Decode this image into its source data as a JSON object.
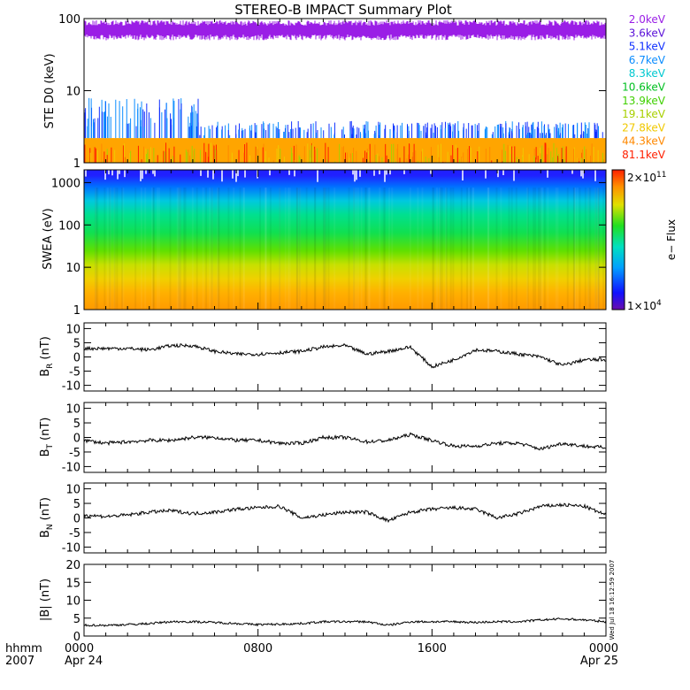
{
  "title": "STEREO-B IMPACT Summary Plot",
  "colors": {
    "ste_background": "#ffa500",
    "flux_low": "#6a0dad",
    "flux_high": "#ff2000"
  },
  "chart_data": [
    {
      "type": "line",
      "id": "ste",
      "ylabel": "STE D0 (keV)",
      "yscale": "log",
      "ylim": [
        1,
        100
      ],
      "yticks": [
        "1",
        "10",
        "100"
      ],
      "legend_placement": "right",
      "series": [
        {
          "name": "2.0keV",
          "color": "#9a1ee6",
          "level_low": 50,
          "level_high": 95
        },
        {
          "name": "3.6keV",
          "color": "#5a10d8"
        },
        {
          "name": "5.1keV",
          "color": "#1030ff"
        },
        {
          "name": "6.7keV",
          "color": "#0a8cff"
        },
        {
          "name": "8.3keV",
          "color": "#00c8d0"
        },
        {
          "name": "10.6keV",
          "color": "#00c020"
        },
        {
          "name": "13.9keV",
          "color": "#40d000"
        },
        {
          "name": "19.1keV",
          "color": "#a8d000"
        },
        {
          "name": "27.8keV",
          "color": "#f0c800"
        },
        {
          "name": "44.3keV",
          "color": "#ff8800"
        },
        {
          "name": "81.1keV",
          "color": "#ff2000"
        }
      ]
    },
    {
      "type": "heatmap",
      "id": "swea",
      "ylabel": "SWEA (eV)",
      "yscale": "log",
      "ylim": [
        1,
        2000
      ],
      "yticks": [
        "1",
        "10",
        "100",
        "1000"
      ],
      "colorbar": {
        "label": "e− Flux",
        "max_label": "2×10",
        "max_exp": "11",
        "min_label": "1×10",
        "min_exp": "4",
        "range": [
          10000,
          200000000000
        ]
      }
    },
    {
      "type": "line",
      "id": "br",
      "ylabel_main": "B",
      "ylabel_sub": "R",
      "ylabel_unit": "(nT)",
      "ylim": [
        -12,
        12
      ],
      "yticks": [
        "10",
        "5",
        "0",
        "-5",
        "-10"
      ],
      "x": [
        0,
        1,
        2,
        3,
        4,
        5,
        6,
        7,
        8,
        9,
        10,
        11,
        12,
        13,
        14,
        15,
        16,
        17,
        18,
        19,
        20,
        21,
        22,
        23,
        24
      ],
      "values": [
        3,
        3,
        3,
        2.5,
        4,
        4,
        2,
        1,
        1,
        1.5,
        2,
        3.5,
        4,
        1,
        2,
        3.5,
        -3.5,
        -1,
        2.5,
        2,
        1,
        0,
        -3,
        -1,
        -1
      ]
    },
    {
      "type": "line",
      "id": "bt",
      "ylabel_main": "B",
      "ylabel_sub": "T",
      "ylabel_unit": "(nT)",
      "ylim": [
        -12,
        12
      ],
      "yticks": [
        "10",
        "5",
        "0",
        "-5",
        "-10"
      ],
      "x": [
        0,
        1,
        2,
        3,
        4,
        5,
        6,
        7,
        8,
        9,
        10,
        11,
        12,
        13,
        14,
        15,
        16,
        17,
        18,
        19,
        20,
        21,
        22,
        23,
        24
      ],
      "values": [
        -1,
        -2,
        -1.5,
        -1,
        -1,
        0,
        0,
        -1,
        -1,
        -2,
        -2,
        0,
        0,
        -1.5,
        -1,
        1,
        -1,
        -3,
        -3,
        -2,
        -2,
        -4,
        -2,
        -3,
        -3.5
      ]
    },
    {
      "type": "line",
      "id": "bn",
      "ylabel_main": "B",
      "ylabel_sub": "N",
      "ylabel_unit": "(nT)",
      "ylim": [
        -12,
        12
      ],
      "yticks": [
        "10",
        "5",
        "0",
        "-5",
        "-10"
      ],
      "x": [
        0,
        1,
        2,
        3,
        4,
        5,
        6,
        7,
        8,
        9,
        10,
        11,
        12,
        13,
        14,
        15,
        16,
        17,
        18,
        19,
        20,
        21,
        22,
        23,
        24
      ],
      "values": [
        1,
        0.5,
        1,
        2,
        2.5,
        1.5,
        2,
        3,
        3.5,
        4,
        0,
        1,
        2,
        2,
        -1,
        2,
        3,
        3.5,
        3,
        0,
        1.5,
        4,
        4.5,
        4,
        1
      ]
    },
    {
      "type": "line",
      "id": "bmag",
      "ylabel": "|B| (nT)",
      "ylim": [
        0,
        20
      ],
      "yticks": [
        "20",
        "15",
        "10",
        "5",
        "0"
      ],
      "x": [
        0,
        1,
        2,
        3,
        4,
        5,
        6,
        7,
        8,
        9,
        10,
        11,
        12,
        13,
        14,
        15,
        16,
        17,
        18,
        19,
        20,
        21,
        22,
        23,
        24
      ],
      "values": [
        3,
        3,
        3.2,
        3.5,
        4,
        4,
        3.8,
        3.5,
        3.2,
        3.3,
        3.5,
        4,
        4,
        4,
        3,
        4,
        4,
        4,
        3.8,
        4,
        4,
        4.5,
        4.8,
        4.5,
        4
      ]
    }
  ],
  "xaxis": {
    "tick_labels": [
      "0000",
      "0800",
      "1600",
      "0000"
    ],
    "date_labels": [
      "Apr 24",
      "",
      "",
      "Apr 25"
    ],
    "row1_label": "hhmm",
    "row2_label": "2007"
  },
  "side_stamp": "Wed Jul 18 16:12:59 2007"
}
